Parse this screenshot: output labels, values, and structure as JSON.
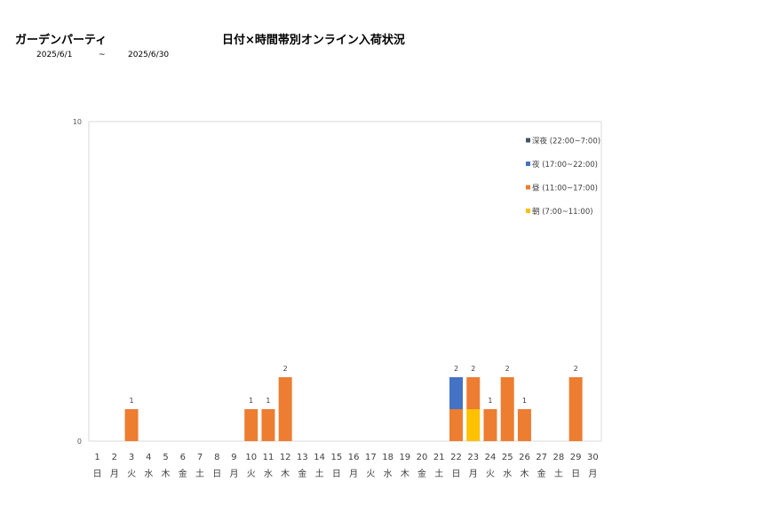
{
  "header": {
    "store_name": "ガーデンパーティ",
    "title": "日付×時間帯別オンライン入荷状況",
    "date_from": "2025/6/1",
    "tilde": "~",
    "date_to": "2025/6/30"
  },
  "chart_data": {
    "type": "bar",
    "stacked": true,
    "title": "日付×時間帯別オンライン入荷状況",
    "categories": [
      "1",
      "2",
      "3",
      "4",
      "5",
      "6",
      "7",
      "8",
      "9",
      "10",
      "11",
      "12",
      "13",
      "14",
      "15",
      "16",
      "17",
      "18",
      "19",
      "20",
      "21",
      "22",
      "23",
      "24",
      "25",
      "26",
      "27",
      "28",
      "29",
      "30"
    ],
    "weekdays": [
      "日",
      "月",
      "火",
      "水",
      "木",
      "金",
      "土",
      "日",
      "月",
      "火",
      "水",
      "木",
      "金",
      "土",
      "日",
      "月",
      "火",
      "水",
      "木",
      "金",
      "土",
      "日",
      "月",
      "火",
      "水",
      "木",
      "金",
      "土",
      "日",
      "月"
    ],
    "series": [
      {
        "name": "朝 (7:00~11:00)",
        "color": "#FFC000",
        "values": [
          0,
          0,
          0,
          0,
          0,
          0,
          0,
          0,
          0,
          0,
          0,
          0,
          0,
          0,
          0,
          0,
          0,
          0,
          0,
          0,
          0,
          0,
          1,
          0,
          0,
          0,
          0,
          0,
          0,
          0
        ]
      },
      {
        "name": "昼 (11:00~17:00)",
        "color": "#ED7D31",
        "values": [
          0,
          0,
          1,
          0,
          0,
          0,
          0,
          0,
          0,
          1,
          1,
          2,
          0,
          0,
          0,
          0,
          0,
          0,
          0,
          0,
          0,
          1,
          1,
          1,
          2,
          1,
          0,
          0,
          2,
          0
        ]
      },
      {
        "name": "夜 (17:00~22:00)",
        "color": "#4472C4",
        "values": [
          0,
          0,
          0,
          0,
          0,
          0,
          0,
          0,
          0,
          0,
          0,
          0,
          0,
          0,
          0,
          0,
          0,
          0,
          0,
          0,
          0,
          1,
          0,
          0,
          0,
          0,
          0,
          0,
          0,
          0
        ]
      },
      {
        "name": "深夜 (22:00~7:00)",
        "color": "#44546A",
        "values": [
          0,
          0,
          0,
          0,
          0,
          0,
          0,
          0,
          0,
          0,
          0,
          0,
          0,
          0,
          0,
          0,
          0,
          0,
          0,
          0,
          0,
          0,
          0,
          0,
          0,
          0,
          0,
          0,
          0,
          0
        ]
      }
    ],
    "totals": [
      null,
      null,
      1,
      null,
      null,
      null,
      null,
      null,
      null,
      1,
      1,
      2,
      null,
      null,
      null,
      null,
      null,
      null,
      null,
      null,
      null,
      2,
      2,
      1,
      2,
      1,
      null,
      null,
      2,
      null
    ],
    "ylim": [
      0,
      10
    ],
    "y_ticks": [
      0,
      10
    ],
    "legend_position": "top-right",
    "legend_order": [
      "深夜 (22:00~7:00)",
      "夜 (17:00~22:00)",
      "昼 (11:00~17:00)",
      "朝 (7:00~11:00)"
    ],
    "grid": false
  }
}
